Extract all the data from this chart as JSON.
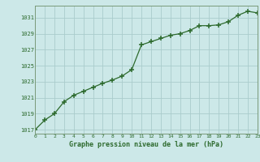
{
  "x": [
    0,
    1,
    2,
    3,
    4,
    5,
    6,
    7,
    8,
    9,
    10,
    11,
    12,
    13,
    14,
    15,
    16,
    17,
    18,
    19,
    20,
    21,
    22,
    23
  ],
  "y": [
    1017.0,
    1018.2,
    1019.0,
    1020.5,
    1021.3,
    1021.8,
    1022.3,
    1022.8,
    1023.2,
    1023.7,
    1024.5,
    1027.6,
    1028.0,
    1028.4,
    1028.8,
    1029.0,
    1029.4,
    1030.0,
    1030.0,
    1030.1,
    1030.5,
    1031.3,
    1031.8,
    1031.6
  ],
  "xlim": [
    0,
    23
  ],
  "ylim": [
    1016.5,
    1032.5
  ],
  "yticks": [
    1017,
    1019,
    1021,
    1023,
    1025,
    1027,
    1029,
    1031
  ],
  "xticks": [
    0,
    1,
    2,
    3,
    4,
    5,
    6,
    7,
    8,
    9,
    10,
    11,
    12,
    13,
    14,
    15,
    16,
    17,
    18,
    19,
    20,
    21,
    22,
    23
  ],
  "xlabel": "Graphe pression niveau de la mer (hPa)",
  "line_color": "#2d6a2d",
  "marker_color": "#2d6a2d",
  "bg_color": "#cce8e8",
  "grid_color": "#aacccc",
  "border_color": "#7a9a7a",
  "label_color": "#2d6a2d",
  "tick_color": "#2d6a2d"
}
